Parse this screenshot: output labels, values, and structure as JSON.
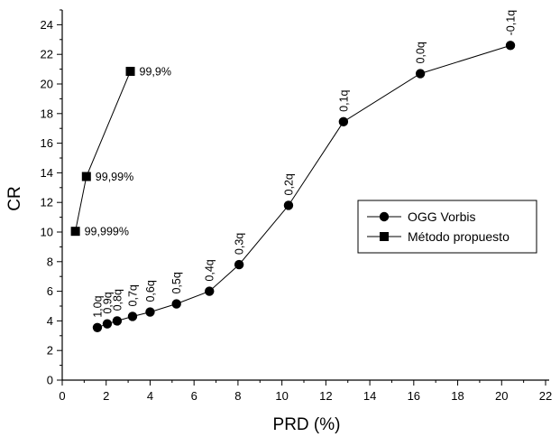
{
  "chart_data": {
    "type": "scatter",
    "xlabel": "PRD (%)",
    "ylabel": "CR",
    "xlim": [
      0,
      22
    ],
    "ylim": [
      0,
      25
    ],
    "xticks": [
      0,
      2,
      4,
      6,
      8,
      10,
      12,
      14,
      16,
      18,
      20,
      22
    ],
    "yticks": [
      0,
      2,
      4,
      6,
      8,
      10,
      12,
      14,
      16,
      18,
      20,
      22,
      24
    ],
    "grid": false,
    "legend_position": "right",
    "series": [
      {
        "name": "OGG Vorbis",
        "marker": "circle",
        "color": "#000000",
        "points": [
          {
            "x": 1.6,
            "y": 3.55,
            "label": "1,0q"
          },
          {
            "x": 2.05,
            "y": 3.8,
            "label": "0,9q"
          },
          {
            "x": 2.5,
            "y": 4.0,
            "label": "0,8q"
          },
          {
            "x": 3.2,
            "y": 4.3,
            "label": "0,7q"
          },
          {
            "x": 4.0,
            "y": 4.6,
            "label": "0,6q"
          },
          {
            "x": 5.2,
            "y": 5.15,
            "label": "0,5q"
          },
          {
            "x": 6.7,
            "y": 6.0,
            "label": "0,4q"
          },
          {
            "x": 8.05,
            "y": 7.8,
            "label": "0,3q"
          },
          {
            "x": 10.3,
            "y": 11.8,
            "label": "0,2q"
          },
          {
            "x": 12.8,
            "y": 17.45,
            "label": "0,1q"
          },
          {
            "x": 16.3,
            "y": 20.7,
            "label": "0,0q"
          },
          {
            "x": 20.4,
            "y": 22.6,
            "label": "-0,1q"
          }
        ]
      },
      {
        "name": "Método propuesto",
        "marker": "square",
        "color": "#000000",
        "points": [
          {
            "x": 0.6,
            "y": 10.05,
            "label": "99,999%"
          },
          {
            "x": 1.1,
            "y": 13.75,
            "label": "99,99%"
          },
          {
            "x": 3.1,
            "y": 20.85,
            "label": "99,9%"
          }
        ]
      }
    ]
  }
}
